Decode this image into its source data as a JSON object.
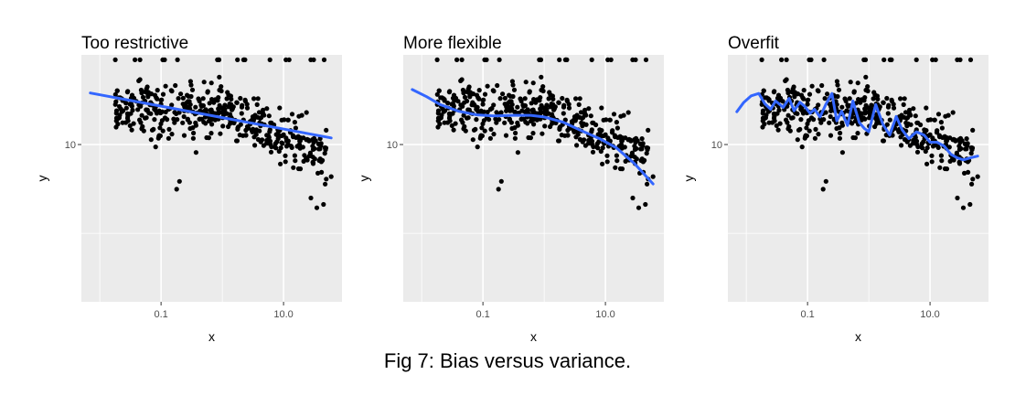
{
  "caption": "Fig 7: Bias versus variance.",
  "colors": {
    "panel_bg": "#ebebeb",
    "grid": "#ffffff",
    "points": "#000000",
    "fit_line": "#3366ff"
  },
  "chart_data": [
    {
      "type": "scatter",
      "title": "Too restrictive",
      "xlabel": "x",
      "ylabel": "y",
      "x_scale": "log10",
      "y_scale": "log10",
      "xlim": [
        0.005,
        90
      ],
      "ylim": [
        1.3,
        32
      ],
      "x_ticks": [
        {
          "value": 0.1,
          "label": "0.1"
        },
        {
          "value": 10.0,
          "label": "10.0"
        }
      ],
      "y_ticks": [
        {
          "value": 10,
          "label": "10"
        }
      ],
      "grid": true,
      "fit": {
        "name": "",
        "method": "linear",
        "x": [
          0.007,
          60
        ],
        "y": [
          19.5,
          10.9
        ]
      }
    },
    {
      "type": "scatter",
      "title": "More flexible",
      "xlabel": "x",
      "ylabel": "y",
      "x_scale": "log10",
      "y_scale": "log10",
      "xlim": [
        0.005,
        90
      ],
      "ylim": [
        1.3,
        32
      ],
      "x_ticks": [
        {
          "value": 0.1,
          "label": "0.1"
        },
        {
          "value": 10.0,
          "label": "10.0"
        }
      ],
      "y_ticks": [
        {
          "value": 10,
          "label": "10"
        }
      ],
      "grid": true,
      "fit": {
        "name": "",
        "method": "smooth",
        "x": [
          0.007,
          0.012,
          0.02,
          0.04,
          0.08,
          0.15,
          0.3,
          0.6,
          1.0,
          2.0,
          4.0,
          8.0,
          15,
          30,
          60
        ],
        "y": [
          20.4,
          18.6,
          16.8,
          15.4,
          14.7,
          14.5,
          14.6,
          14.6,
          14.3,
          13.4,
          12.0,
          10.8,
          9.6,
          7.8,
          6.0
        ]
      }
    },
    {
      "type": "scatter",
      "title": "Overfit",
      "xlabel": "x",
      "ylabel": "y",
      "x_scale": "log10",
      "y_scale": "log10",
      "xlim": [
        0.005,
        90
      ],
      "ylim": [
        1.3,
        32
      ],
      "x_ticks": [
        {
          "value": 0.1,
          "label": "0.1"
        },
        {
          "value": 10.0,
          "label": "10.0"
        }
      ],
      "y_ticks": [
        {
          "value": 10,
          "label": "10"
        }
      ],
      "grid": true,
      "fit": {
        "name": "",
        "method": "interpolating",
        "x": [
          0.007,
          0.009,
          0.012,
          0.016,
          0.02,
          0.025,
          0.03,
          0.04,
          0.05,
          0.06,
          0.075,
          0.09,
          0.11,
          0.13,
          0.16,
          0.2,
          0.25,
          0.3,
          0.36,
          0.45,
          0.55,
          0.7,
          0.85,
          1.0,
          1.3,
          1.7,
          2.2,
          2.8,
          3.5,
          4.5,
          6.0,
          8.0,
          10.0,
          13,
          17,
          22,
          28,
          35,
          45,
          60
        ],
        "y": [
          15.3,
          17.2,
          18.8,
          19.4,
          17.0,
          15.8,
          17.6,
          16.2,
          18.2,
          15.5,
          17.3,
          16.4,
          15.0,
          15.8,
          14.3,
          16.9,
          19.4,
          13.6,
          15.4,
          12.8,
          17.6,
          13.3,
          12.3,
          11.8,
          16.8,
          13.0,
          11.3,
          14.4,
          12.1,
          10.8,
          11.8,
          11.3,
          10.3,
          10.3,
          9.8,
          8.8,
          8.4,
          8.2,
          8.4,
          8.6
        ]
      }
    }
  ]
}
